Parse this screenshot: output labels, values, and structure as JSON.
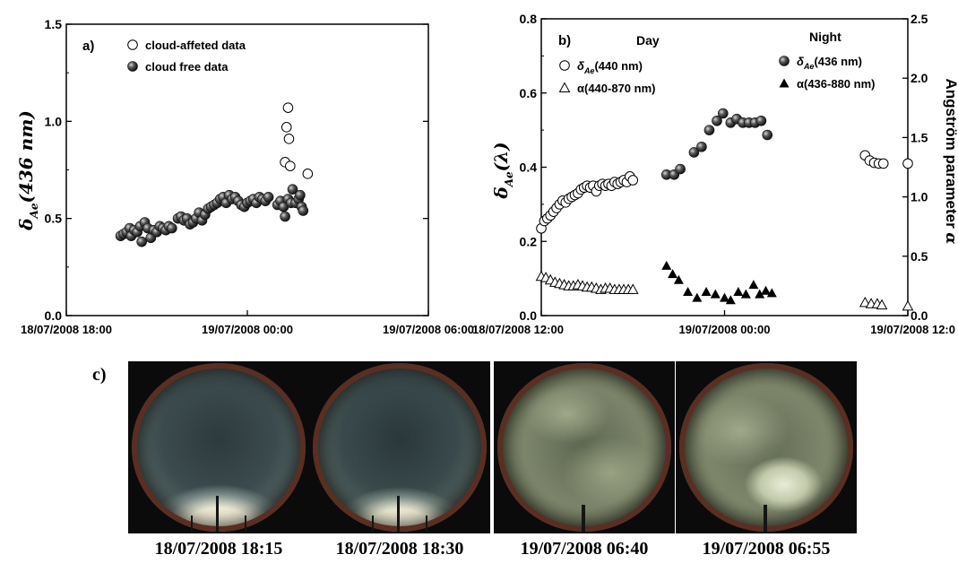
{
  "chart_data": [
    {
      "type": "scatter",
      "panel_label": "a)",
      "ylabel_main": "δ",
      "ylabel_sub": "Ae",
      "ylabel_rest": "(436 nm)",
      "xlabel": "",
      "x_ticks": [
        "18/07/2008 18:00",
        "19/07/2008 00:00",
        "19/07/2008 06:00"
      ],
      "y_ticks": [
        "0.0",
        "0.5",
        "1.0",
        "1.5"
      ],
      "ylim": [
        0,
        1.5
      ],
      "xlim_hours": [
        0,
        12
      ],
      "legend_position": "top-left",
      "series": [
        {
          "name": "cloud-affeted data",
          "marker": "open-circle",
          "points": [
            [
              7.35,
              1.07
            ],
            [
              7.3,
              0.97
            ],
            [
              7.38,
              0.91
            ],
            [
              7.25,
              0.79
            ],
            [
              7.42,
              0.77
            ],
            [
              8.0,
              0.73
            ]
          ]
        },
        {
          "name": "cloud free data",
          "marker": "filled-sphere",
          "points": [
            [
              1.8,
              0.41
            ],
            [
              1.9,
              0.42
            ],
            [
              2.0,
              0.43
            ],
            [
              2.1,
              0.45
            ],
            [
              2.15,
              0.41
            ],
            [
              2.25,
              0.44
            ],
            [
              2.35,
              0.43
            ],
            [
              2.45,
              0.46
            ],
            [
              2.5,
              0.38
            ],
            [
              2.6,
              0.48
            ],
            [
              2.7,
              0.45
            ],
            [
              2.8,
              0.4
            ],
            [
              2.9,
              0.44
            ],
            [
              3.0,
              0.43
            ],
            [
              3.1,
              0.46
            ],
            [
              3.2,
              0.45
            ],
            [
              3.3,
              0.44
            ],
            [
              3.4,
              0.46
            ],
            [
              3.5,
              0.45
            ],
            [
              3.7,
              0.5
            ],
            [
              3.8,
              0.51
            ],
            [
              3.9,
              0.49
            ],
            [
              4.0,
              0.5
            ],
            [
              4.1,
              0.47
            ],
            [
              4.2,
              0.48
            ],
            [
              4.3,
              0.5
            ],
            [
              4.4,
              0.53
            ],
            [
              4.5,
              0.49
            ],
            [
              4.6,
              0.52
            ],
            [
              4.7,
              0.55
            ],
            [
              4.8,
              0.56
            ],
            [
              4.9,
              0.57
            ],
            [
              5.0,
              0.58
            ],
            [
              5.1,
              0.6
            ],
            [
              5.2,
              0.61
            ],
            [
              5.3,
              0.58
            ],
            [
              5.4,
              0.62
            ],
            [
              5.5,
              0.6
            ],
            [
              5.6,
              0.61
            ],
            [
              5.7,
              0.59
            ],
            [
              5.8,
              0.57
            ],
            [
              5.9,
              0.56
            ],
            [
              6.0,
              0.58
            ],
            [
              6.1,
              0.59
            ],
            [
              6.2,
              0.6
            ],
            [
              6.3,
              0.58
            ],
            [
              6.4,
              0.61
            ],
            [
              6.5,
              0.6
            ],
            [
              6.6,
              0.59
            ],
            [
              6.7,
              0.61
            ],
            [
              7.0,
              0.57
            ],
            [
              7.1,
              0.59
            ],
            [
              7.2,
              0.56
            ],
            [
              7.25,
              0.51
            ],
            [
              7.35,
              0.6
            ],
            [
              7.45,
              0.58
            ],
            [
              7.5,
              0.65
            ],
            [
              7.6,
              0.58
            ],
            [
              7.7,
              0.6
            ],
            [
              7.75,
              0.62
            ],
            [
              7.8,
              0.56
            ],
            [
              7.85,
              0.54
            ]
          ]
        }
      ]
    },
    {
      "type": "scatter",
      "panel_label": "b)",
      "ylabel_main": "δ",
      "ylabel_sub": "Ae",
      "ylabel_rest": "(λ)",
      "y2label": "Angström parameter",
      "y2label_symbol": "α",
      "header_day": "Day",
      "header_night": "Night",
      "x_ticks": [
        "18/07/2008 12:00",
        "19/07/2008 00:00",
        "19/07/2008 12:0"
      ],
      "y_ticks": [
        "0.0",
        "0.2",
        "0.4",
        "0.6",
        "0.8"
      ],
      "y2_ticks": [
        "0.0",
        "0.5",
        "1.0",
        "1.5",
        "2.0",
        "2.5"
      ],
      "ylim": [
        0,
        0.8
      ],
      "y2lim": [
        0,
        2.5
      ],
      "xlim_hours": [
        0,
        24
      ],
      "series": [
        {
          "name_sym": "δ",
          "name_sub": "Ae",
          "name_rest": "(440 nm)",
          "axis": "left",
          "marker": "open-circle",
          "points": [
            [
              0.0,
              0.235
            ],
            [
              0.2,
              0.255
            ],
            [
              0.4,
              0.262
            ],
            [
              0.6,
              0.27
            ],
            [
              0.8,
              0.28
            ],
            [
              1.0,
              0.29
            ],
            [
              1.2,
              0.3
            ],
            [
              1.4,
              0.31
            ],
            [
              1.6,
              0.305
            ],
            [
              1.8,
              0.315
            ],
            [
              2.0,
              0.32
            ],
            [
              2.2,
              0.325
            ],
            [
              2.4,
              0.33
            ],
            [
              2.6,
              0.34
            ],
            [
              2.8,
              0.345
            ],
            [
              3.0,
              0.35
            ],
            [
              3.2,
              0.345
            ],
            [
              3.4,
              0.35
            ],
            [
              3.6,
              0.335
            ],
            [
              3.8,
              0.35
            ],
            [
              4.0,
              0.355
            ],
            [
              4.2,
              0.35
            ],
            [
              4.4,
              0.355
            ],
            [
              4.6,
              0.35
            ],
            [
              4.8,
              0.36
            ],
            [
              5.0,
              0.355
            ],
            [
              5.2,
              0.36
            ],
            [
              5.4,
              0.365
            ],
            [
              5.6,
              0.36
            ],
            [
              5.8,
              0.375
            ],
            [
              6.0,
              0.365
            ],
            [
              21.2,
              0.432
            ],
            [
              21.5,
              0.418
            ],
            [
              21.8,
              0.412
            ],
            [
              22.1,
              0.41
            ],
            [
              22.4,
              0.41
            ],
            [
              24.0,
              0.41
            ]
          ]
        },
        {
          "name_sym": "α",
          "name_sub": "",
          "name_rest": "(440-870 nm)",
          "axis": "right",
          "marker": "open-triangle",
          "points": [
            [
              0.0,
              0.33
            ],
            [
              0.3,
              0.32
            ],
            [
              0.6,
              0.3
            ],
            [
              0.9,
              0.28
            ],
            [
              1.2,
              0.27
            ],
            [
              1.5,
              0.26
            ],
            [
              1.8,
              0.25
            ],
            [
              2.1,
              0.25
            ],
            [
              2.4,
              0.26
            ],
            [
              2.7,
              0.25
            ],
            [
              3.0,
              0.24
            ],
            [
              3.3,
              0.24
            ],
            [
              3.6,
              0.23
            ],
            [
              3.9,
              0.22
            ],
            [
              4.2,
              0.23
            ],
            [
              4.5,
              0.23
            ],
            [
              4.8,
              0.22
            ],
            [
              5.1,
              0.22
            ],
            [
              5.4,
              0.22
            ],
            [
              5.7,
              0.22
            ],
            [
              6.0,
              0.22
            ],
            [
              21.2,
              0.11
            ],
            [
              21.6,
              0.1
            ],
            [
              22.0,
              0.1
            ],
            [
              22.3,
              0.09
            ],
            [
              24.0,
              0.08
            ]
          ]
        },
        {
          "name_sym": "δ",
          "name_sub": "Ae",
          "name_rest": "(436 nm)",
          "axis": "left",
          "marker": "filled-sphere",
          "points": [
            [
              8.2,
              0.38
            ],
            [
              8.7,
              0.38
            ],
            [
              9.1,
              0.395
            ],
            [
              10.0,
              0.44
            ],
            [
              10.5,
              0.455
            ],
            [
              11.0,
              0.5
            ],
            [
              11.5,
              0.525
            ],
            [
              11.9,
              0.545
            ],
            [
              12.4,
              0.52
            ],
            [
              12.8,
              0.53
            ],
            [
              13.2,
              0.52
            ],
            [
              13.6,
              0.52
            ],
            [
              14.0,
              0.52
            ],
            [
              14.4,
              0.525
            ],
            [
              14.8,
              0.487
            ]
          ]
        },
        {
          "name_sym": "α",
          "name_sub": "",
          "name_rest": "(436-880 nm)",
          "axis": "right",
          "marker": "filled-triangle",
          "points": [
            [
              8.2,
              0.42
            ],
            [
              8.6,
              0.35
            ],
            [
              9.0,
              0.3
            ],
            [
              9.6,
              0.2
            ],
            [
              10.2,
              0.15
            ],
            [
              10.8,
              0.2
            ],
            [
              11.4,
              0.18
            ],
            [
              12.0,
              0.15
            ],
            [
              12.4,
              0.13
            ],
            [
              12.9,
              0.2
            ],
            [
              13.4,
              0.18
            ],
            [
              13.9,
              0.26
            ],
            [
              14.3,
              0.18
            ],
            [
              14.7,
              0.21
            ],
            [
              15.1,
              0.19
            ]
          ]
        }
      ]
    }
  ],
  "panel_c": {
    "label": "c)",
    "captions": [
      "18/07/2008 18:15",
      "18/07/2008 18:30",
      "19/07/2008 06:40",
      "19/07/2008 06:55"
    ]
  }
}
